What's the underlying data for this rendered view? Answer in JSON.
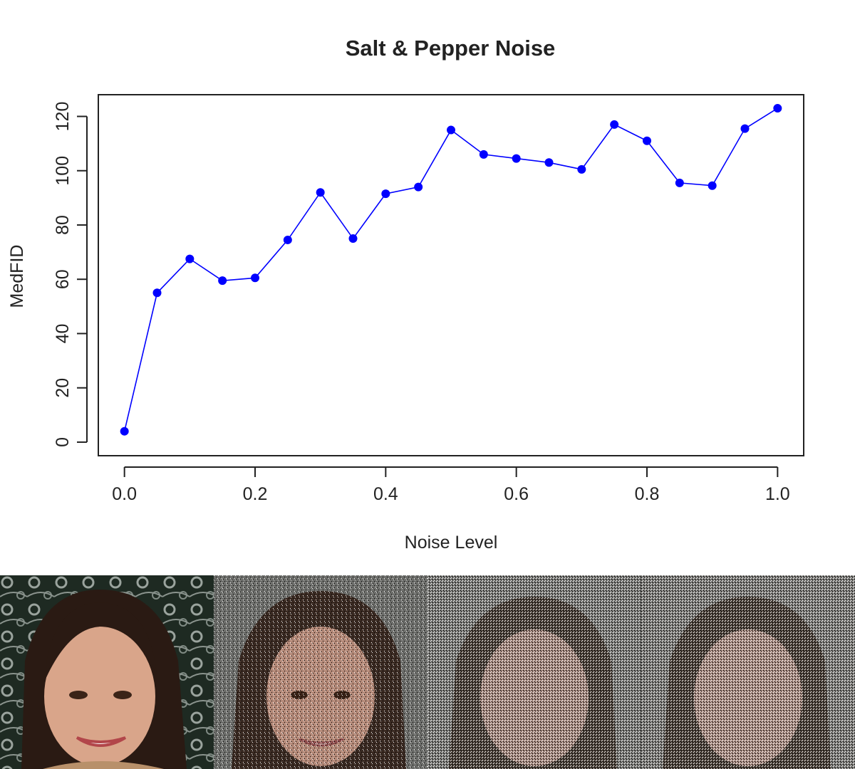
{
  "chart_data": {
    "type": "line",
    "title": "Salt & Pepper Noise",
    "xlabel": "Noise Level",
    "ylabel": "MedFID",
    "x": [
      0.0,
      0.05,
      0.1,
      0.15,
      0.2,
      0.25,
      0.3,
      0.35,
      0.4,
      0.45,
      0.5,
      0.55,
      0.6,
      0.65,
      0.7,
      0.75,
      0.8,
      0.85,
      0.9,
      0.95,
      1.0
    ],
    "series": [
      {
        "color": "#0000ff",
        "marker": "filled-circle",
        "values": [
          4,
          55,
          67.5,
          59.5,
          60.5,
          74.5,
          92,
          75,
          91.5,
          94,
          115,
          106,
          104.5,
          103,
          100.5,
          117,
          111,
          95.5,
          94.5,
          115.5,
          123
        ]
      }
    ],
    "xlim": [
      -0.04,
      1.04
    ],
    "ylim": [
      -5,
      128
    ],
    "xticks": [
      0.0,
      0.2,
      0.4,
      0.6,
      0.8,
      1.0
    ],
    "xtick_labels": [
      "0.0",
      "0.2",
      "0.4",
      "0.6",
      "0.8",
      "1.0"
    ],
    "yticks": [
      0,
      20,
      40,
      60,
      80,
      100,
      120
    ],
    "ytick_labels": [
      "0",
      "20",
      "40",
      "60",
      "80",
      "100",
      "120"
    ],
    "grid": false,
    "legend": "none"
  },
  "photos": [
    {
      "noise": "none"
    },
    {
      "noise": "medium"
    },
    {
      "noise": "high"
    },
    {
      "noise": "high"
    }
  ],
  "colors": {
    "line": "#0000ff",
    "axis": "#222222",
    "background": "#ffffff"
  }
}
